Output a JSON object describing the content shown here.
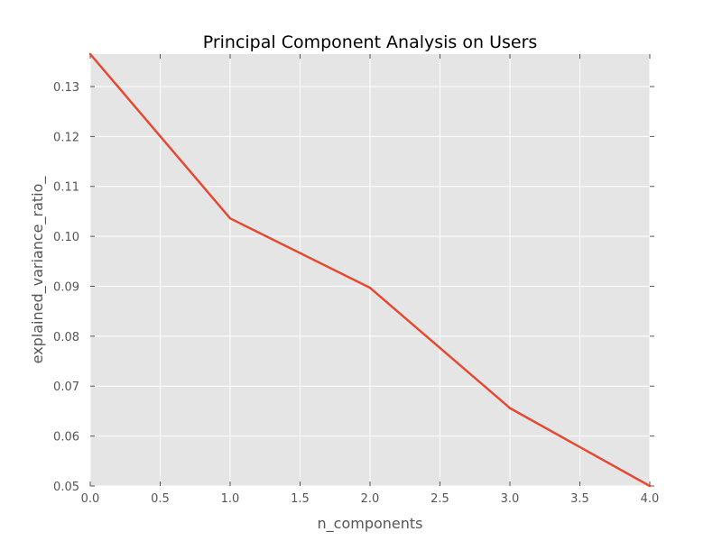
{
  "chart_data": {
    "type": "line",
    "title": "Principal Component Analysis on Users",
    "xlabel": "n_components",
    "ylabel": "explained_variance_ratio_",
    "xlim": [
      0.0,
      4.0
    ],
    "ylim": [
      0.05,
      0.1365
    ],
    "x_ticks": [
      "0.0",
      "0.5",
      "1.0",
      "1.5",
      "2.0",
      "2.5",
      "3.0",
      "3.5",
      "4.0"
    ],
    "y_ticks": [
      "0.05",
      "0.06",
      "0.07",
      "0.08",
      "0.09",
      "0.10",
      "0.11",
      "0.12",
      "0.13"
    ],
    "grid": true,
    "legend": "none",
    "series": [
      {
        "x": [
          0,
          1,
          2,
          3,
          4
        ],
        "values": [
          0.1365,
          0.1036,
          0.0897,
          0.0656,
          0.05
        ],
        "color": "#E24A33"
      }
    ]
  },
  "colors": {
    "plot_background": "#E5E5E5",
    "grid": "#FFFFFF",
    "tick_text": "#555555",
    "line": "#E24A33"
  }
}
